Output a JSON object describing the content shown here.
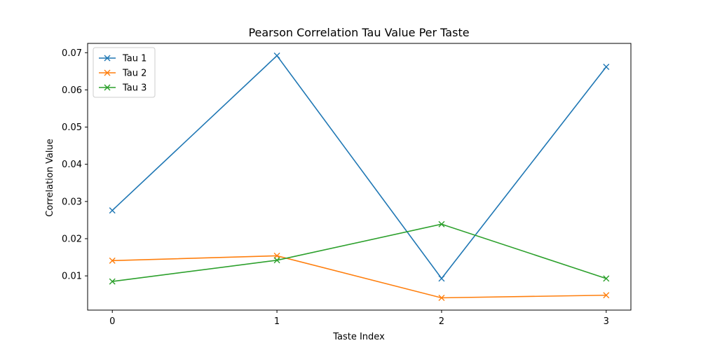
{
  "chart_data": {
    "type": "line",
    "title": "Pearson Correlation Tau Value Per Taste",
    "xlabel": "Taste Index",
    "ylabel": "Correlation Value",
    "x": [
      0,
      1,
      2,
      3
    ],
    "xticks": [
      "0",
      "1",
      "2",
      "3"
    ],
    "yticks": [
      "0.01",
      "0.02",
      "0.03",
      "0.04",
      "0.05",
      "0.06",
      "0.07"
    ],
    "xlim": [
      -0.15,
      3.15
    ],
    "ylim": [
      0.0008,
      0.0725
    ],
    "grid": false,
    "legend_position": "top-left",
    "marker": "x",
    "series": [
      {
        "name": "Tau 1",
        "color": "#1f77b4",
        "values": [
          0.0276,
          0.0692,
          0.0093,
          0.0662
        ]
      },
      {
        "name": "Tau 2",
        "color": "#ff7f0e",
        "values": [
          0.0141,
          0.0154,
          0.0041,
          0.0048
        ]
      },
      {
        "name": "Tau 3",
        "color": "#2ca02c",
        "values": [
          0.0085,
          0.0142,
          0.0239,
          0.0093
        ]
      }
    ]
  }
}
